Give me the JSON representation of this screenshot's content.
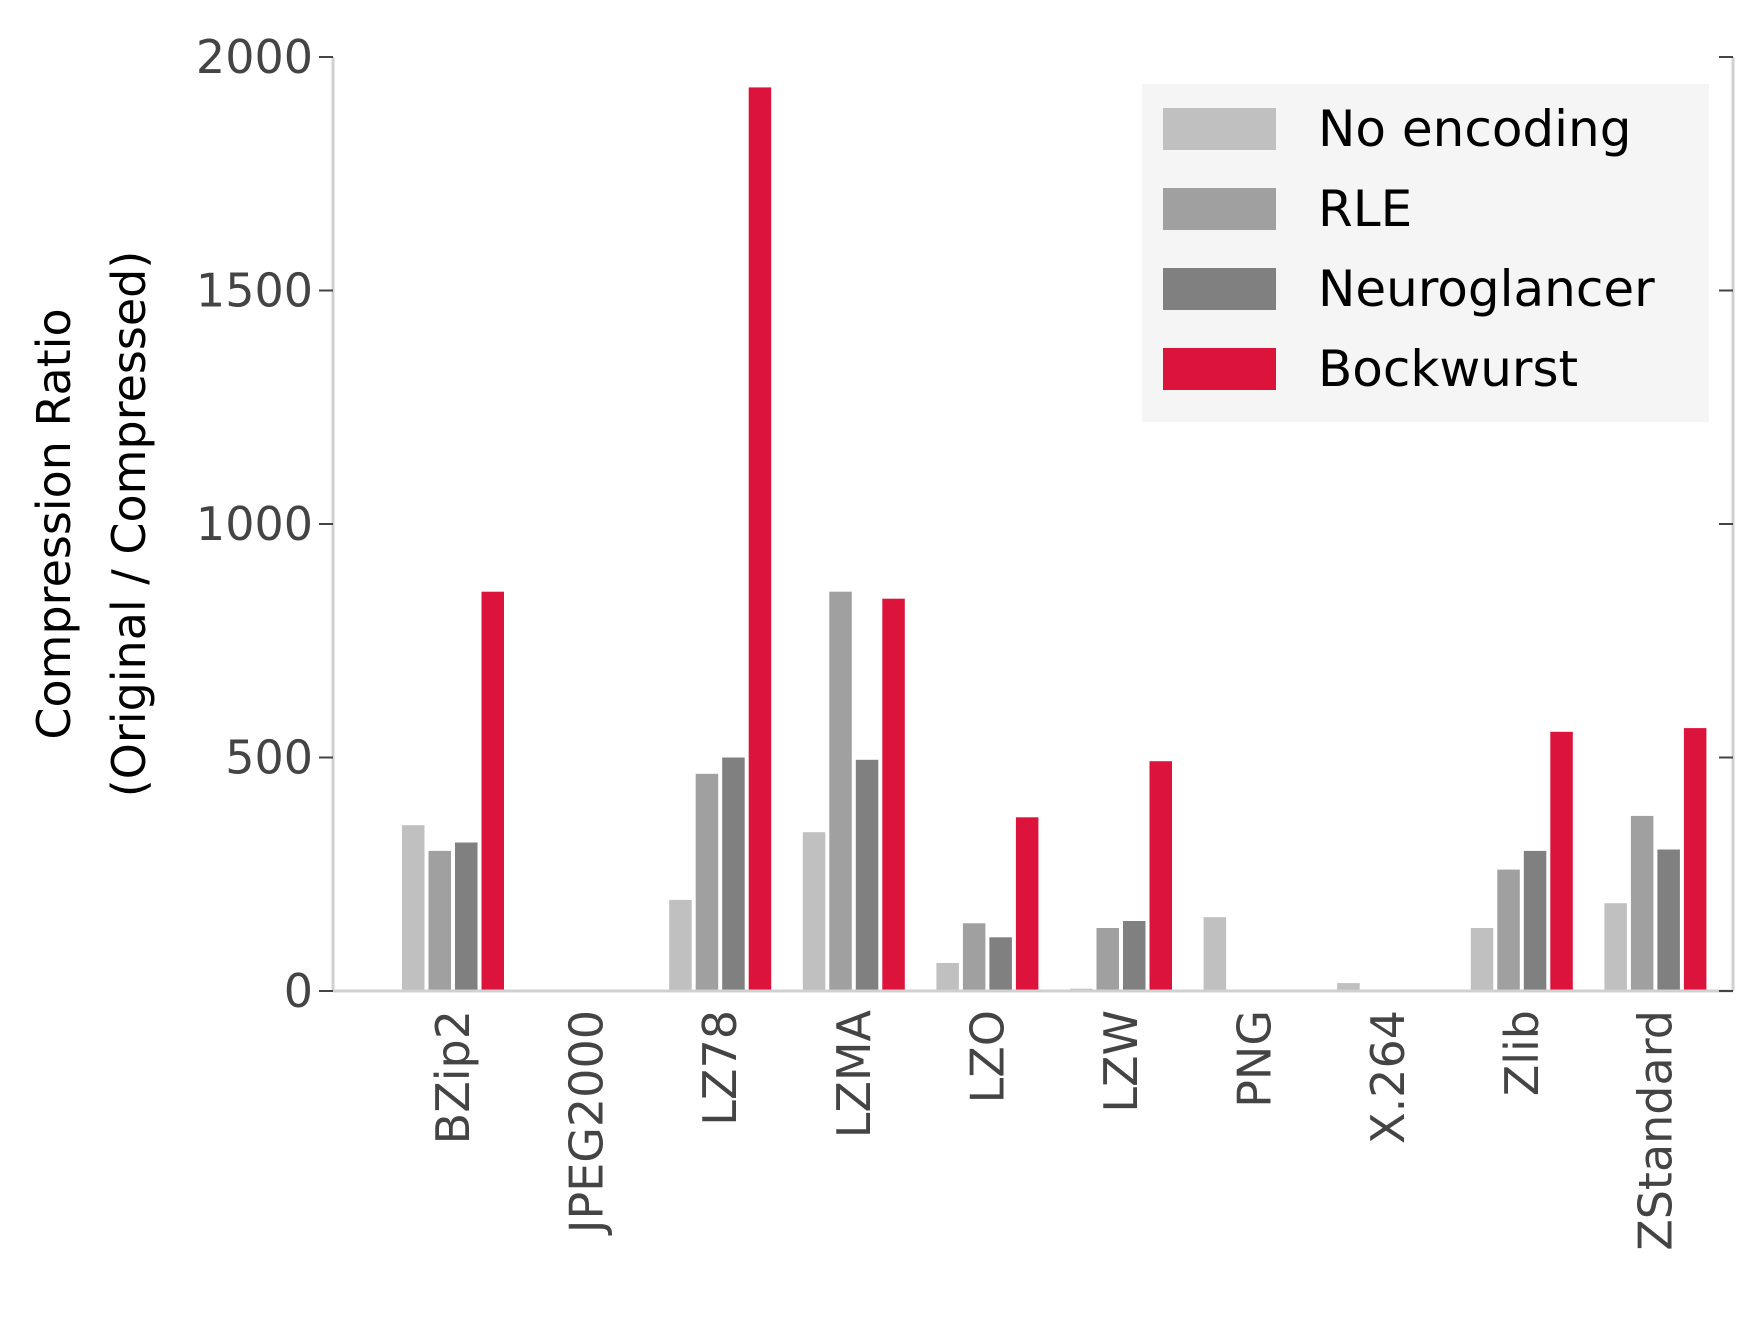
{
  "chart_data": {
    "type": "bar",
    "title": "",
    "xlabel": "",
    "ylabel": [
      "Compression Ratio",
      "(Original / Compressed)"
    ],
    "ylim": [
      0,
      2000
    ],
    "yticks": [
      0,
      500,
      1000,
      1500,
      2000
    ],
    "grid": false,
    "legend_position": "top-right",
    "categories": [
      "BZip2",
      "JPEG2000",
      "LZ78",
      "LZMA",
      "LZO",
      "LZW",
      "PNG",
      "X.264",
      "Zlib",
      "ZStandard"
    ],
    "series": [
      {
        "name": "No encoding",
        "color": "#c0c0c0",
        "values": [
          355,
          0,
          195,
          340,
          60,
          5,
          158,
          17,
          135,
          188
        ]
      },
      {
        "name": "RLE",
        "color": "#a0a0a0",
        "values": [
          300,
          0,
          465,
          855,
          145,
          135,
          0,
          0,
          260,
          375
        ]
      },
      {
        "name": "Neuroglancer",
        "color": "#808080",
        "values": [
          318,
          0,
          500,
          495,
          115,
          150,
          0,
          0,
          300,
          303
        ]
      },
      {
        "name": "Bockwurst",
        "color": "#dc143c",
        "values": [
          855,
          0,
          1935,
          840,
          372,
          492,
          0,
          0,
          555,
          563
        ]
      }
    ]
  },
  "colors": {
    "axis": "#d0d0d0",
    "tick": "#444444",
    "legend_background": "#f5f5f5"
  }
}
